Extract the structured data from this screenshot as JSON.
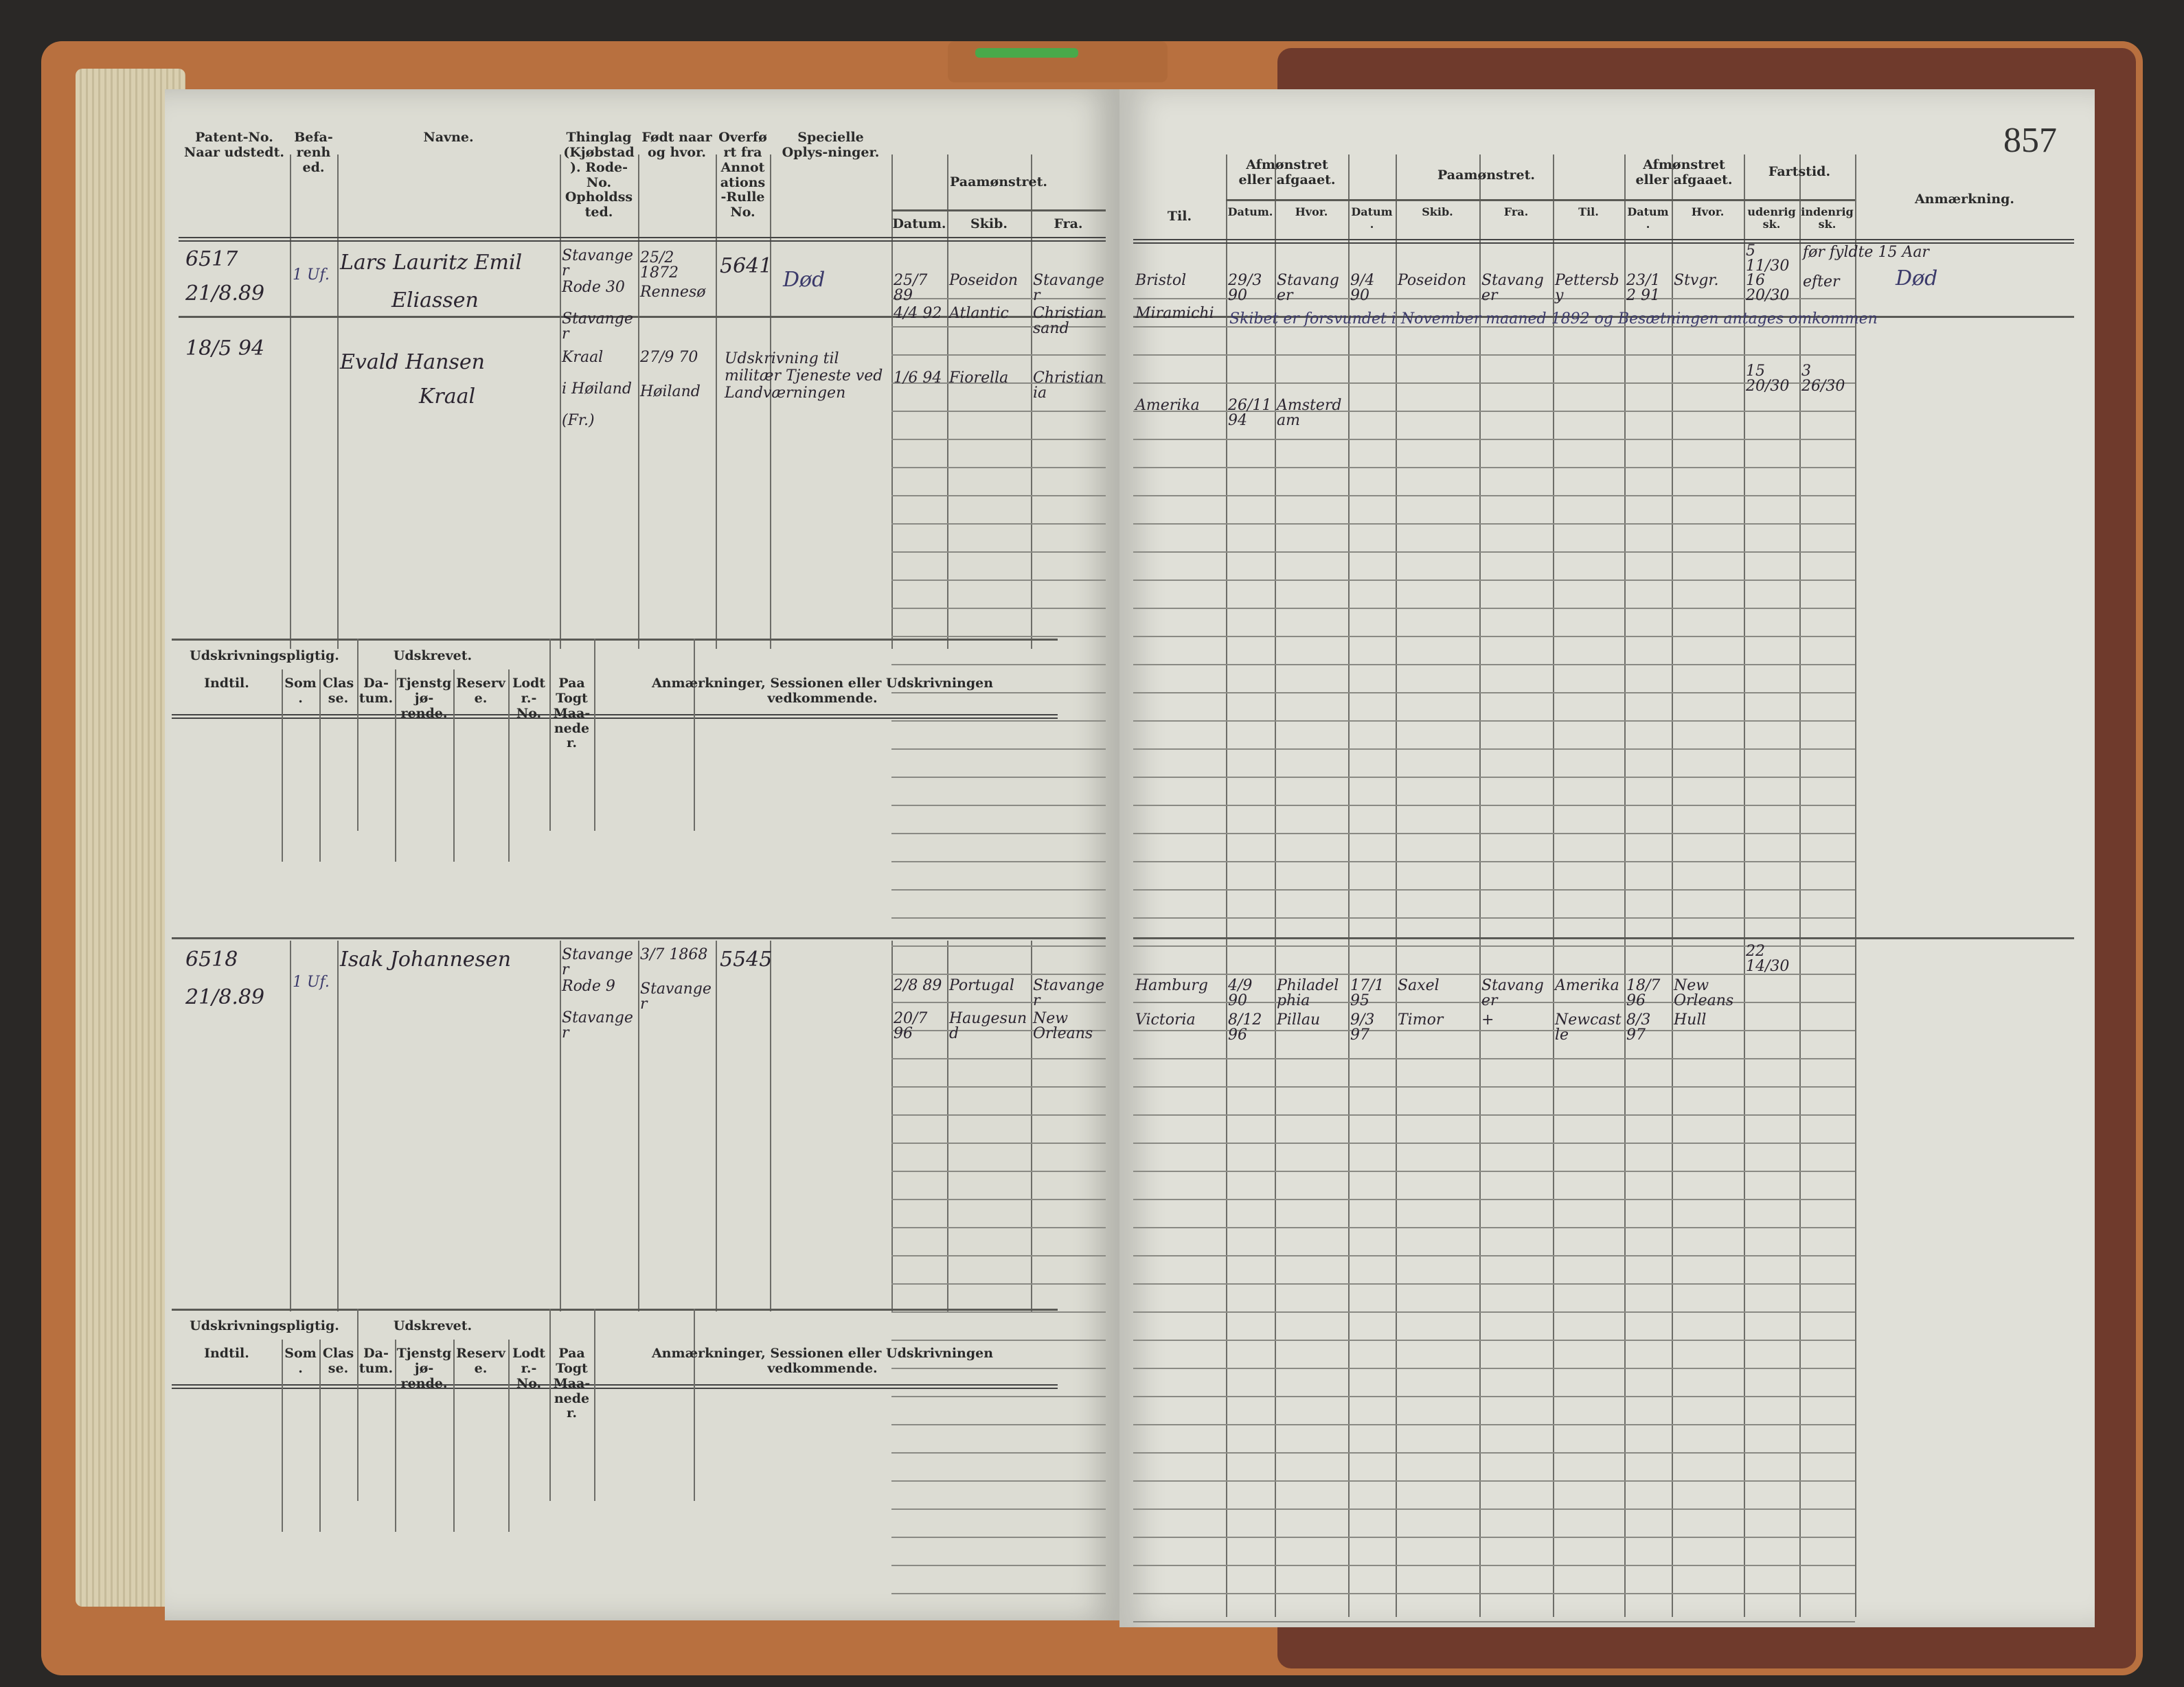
{
  "page_number": "857",
  "left_headers": {
    "patent": "Patent-No. Naar udstedt.",
    "befarenhed": "Befa-renhed.",
    "navne": "Navne.",
    "thinglag": "Thinglag (Kjøbstad). Rode-No. Opholdssted.",
    "fodt": "Født naar og hvor.",
    "overfort": "Overført fra Annotations-Rulle No.",
    "specielle": "Specielle Oplys-ninger.",
    "paamonstret": "Paamønstret.",
    "datum": "Datum.",
    "skib": "Skib.",
    "fra": "Fra."
  },
  "right_headers": {
    "til": "Til.",
    "afmonstret1": "Afmønstret eller afgaaet.",
    "datum": "Datum.",
    "hvor": "Hvor.",
    "paamonstret": "Paamønstret.",
    "datum2": "Datum.",
    "skib": "Skib.",
    "fra": "Fra.",
    "til2": "Til.",
    "afmonstret2": "Afmønstret eller afgaaet.",
    "datum3": "Datum.",
    "hvor2": "Hvor.",
    "fartstid": "Fartstid.",
    "udenrigsk": "udenrigsk.",
    "indenrigsk": "indenrigsk.",
    "anmaerkning": "Anmærkning."
  },
  "sub_headers": {
    "udskrivningspligtig": "Udskrivningspligtig.",
    "udskrevet": "Udskrevet.",
    "indtil": "Indtil.",
    "som": "Som.",
    "classe": "Classe.",
    "datum": "Da-tum.",
    "tjenstgjorende": "Tjenstgjø-rende.",
    "reserve": "Reserve.",
    "lodtr": "Lodtr.-No.",
    "paa_togt": "Paa Togt Maa-neder.",
    "anmaerkninger": "Anmærkninger, Sessionen eller Udskrivningen vedkommende."
  },
  "entries": [
    {
      "patent": "6517",
      "date": "21/8.89",
      "befarenhed": "1 Uf.",
      "name1": "Lars Lauritz Emil",
      "name2": "Eliassen",
      "thinglag": [
        "Stavanger",
        "Rode 30",
        "Stavanger"
      ],
      "fodt": [
        "25/2 1872",
        "Rennesø"
      ],
      "annot": "5641",
      "special": "Død",
      "paam": [
        [
          "25/7 89",
          "Poseidon",
          "Stavanger"
        ],
        [
          "4/4 92",
          "Atlantic",
          "Christiansand"
        ]
      ],
      "right1": [
        "Bristol",
        "29/3 90",
        "Stavanger",
        "9/4 90",
        "Poseidon",
        "Stavanger",
        "Pettersby",
        "23/12 91",
        "Stvgr."
      ],
      "right2_til": "Miramichi",
      "right2_note": "Skibet er forsvundet i November maaned 1892 og Besætningen antages omkommen",
      "fart": [
        "5 11/30",
        "16 20/30"
      ],
      "fart_total": [
        "15 20/30",
        "3 26/30"
      ],
      "anm1": "før fyldte 15 Aar",
      "anm2": "efter",
      "anm3": "Død"
    },
    {
      "date": "18/5 94",
      "name1": "Evald Hansen",
      "name2": "Kraal",
      "thinglag": [
        "Kraal",
        "i Høiland",
        "(Fr.)"
      ],
      "fodt": [
        "27/9 70",
        "Høiland"
      ],
      "special": "Udskrivning til militær Tjeneste ved Landværningen",
      "paam": [
        [
          "1/6 94",
          "Fiorella",
          "Christiania"
        ]
      ],
      "right1": [
        "Amerika",
        "26/11 94",
        "Amsterdam"
      ]
    },
    {
      "patent": "6518",
      "date": "21/8.89",
      "befarenhed": "1 Uf.",
      "name1": "Isak Johannesen",
      "thinglag": [
        "Stavanger",
        "Rode 9",
        "Stavanger"
      ],
      "fodt": [
        "3/7 1868",
        "Stavanger"
      ],
      "annot": "5545",
      "paam": [
        [
          "2/8 89",
          "Portugal",
          "Stavanger"
        ],
        [
          "20/7 96",
          "Haugesund",
          "New Orleans"
        ]
      ],
      "right1": [
        "Hamburg",
        "4/9 90",
        "Philadelphia",
        "17/1 95",
        "Saxel",
        "Stavanger",
        "Amerika",
        "18/7 96",
        "New Orleans"
      ],
      "right2": [
        "Victoria",
        "8/12 96",
        "Pillau",
        "9/3 97",
        "Timor",
        "+",
        "Newcastle",
        "8/3 97",
        "Hull"
      ],
      "fart": [
        "22 14/30"
      ]
    }
  ]
}
